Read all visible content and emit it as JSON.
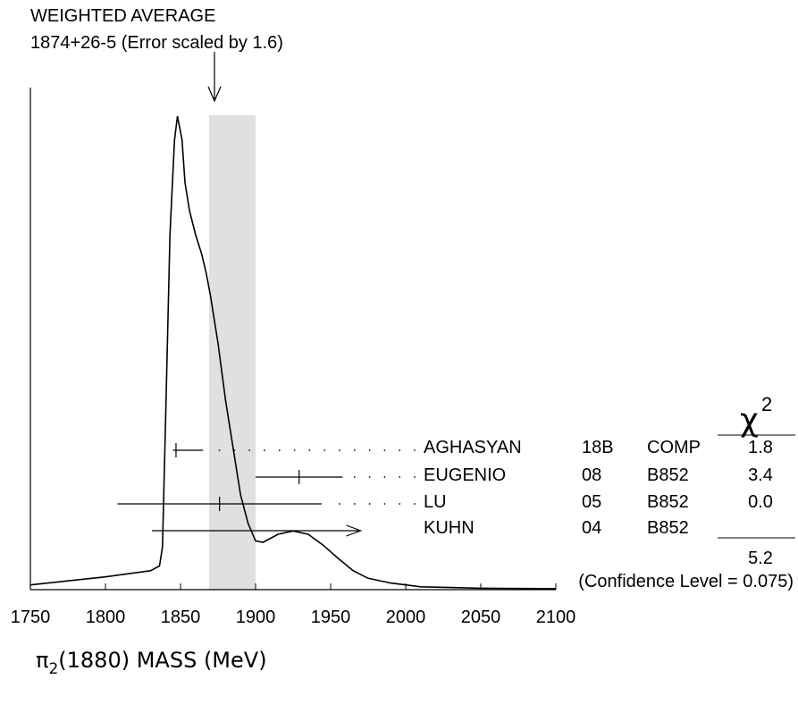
{
  "chart_data": {
    "type": "ideogram",
    "header": {
      "title": "WEIGHTED AVERAGE",
      "subtitle": "1874+26-5 (Error scaled by 1.6)"
    },
    "weighted_average": {
      "value": 1874,
      "err_plus": 26,
      "err_minus": 5
    },
    "band": {
      "from": 1869,
      "to": 1900
    },
    "x_axis": {
      "label_symbol": "π",
      "label_subscript": "2",
      "label_rest": "(1880) MASS (MeV)",
      "xlim": [
        1750,
        2100
      ],
      "ticks": [
        1750,
        1800,
        1850,
        1900,
        1950,
        2000,
        2050,
        2100
      ]
    },
    "measurements": [
      {
        "author": "AGHASYAN",
        "year": "18B",
        "tech": "COMP",
        "chi2": "1.8",
        "value": 1847,
        "lo": 1845,
        "hi": 1865,
        "arrow": false
      },
      {
        "author": "EUGENIO",
        "year": "08",
        "tech": "B852",
        "chi2": "3.4",
        "value": 1929,
        "lo": 1900,
        "hi": 1958,
        "arrow": false
      },
      {
        "author": "LU",
        "year": "05",
        "tech": "B852",
        "chi2": "0.0",
        "value": 1876,
        "lo": 1808,
        "hi": 1944,
        "arrow": false
      },
      {
        "author": "KUHN",
        "year": "04",
        "tech": "B852",
        "chi2": "",
        "value": null,
        "lo": 1831,
        "hi": 1970,
        "arrow": true
      }
    ],
    "chi2_header": "χ",
    "chi2_header_sup": "2",
    "chi2_total": "5.2",
    "confidence_level": "(Confidence Level = 0.075)",
    "ideogram_curve": [
      [
        1750,
        0.01
      ],
      [
        1800,
        0.027
      ],
      [
        1830,
        0.04
      ],
      [
        1836,
        0.05
      ],
      [
        1838,
        0.09
      ],
      [
        1840,
        0.35
      ],
      [
        1843,
        0.75
      ],
      [
        1846,
        0.95
      ],
      [
        1848,
        1.0
      ],
      [
        1851,
        0.95
      ],
      [
        1853,
        0.86
      ],
      [
        1856,
        0.8
      ],
      [
        1860,
        0.75
      ],
      [
        1864,
        0.71
      ],
      [
        1867,
        0.67
      ],
      [
        1870,
        0.62
      ],
      [
        1875,
        0.52
      ],
      [
        1880,
        0.4
      ],
      [
        1885,
        0.3
      ],
      [
        1890,
        0.2
      ],
      [
        1895,
        0.14
      ],
      [
        1900,
        0.103
      ],
      [
        1905,
        0.1
      ],
      [
        1915,
        0.117
      ],
      [
        1925,
        0.124
      ],
      [
        1935,
        0.117
      ],
      [
        1945,
        0.094
      ],
      [
        1955,
        0.066
      ],
      [
        1965,
        0.04
      ],
      [
        1975,
        0.024
      ],
      [
        1990,
        0.014
      ],
      [
        2010,
        0.006
      ],
      [
        2050,
        0.003
      ],
      [
        2100,
        0.002
      ]
    ]
  }
}
